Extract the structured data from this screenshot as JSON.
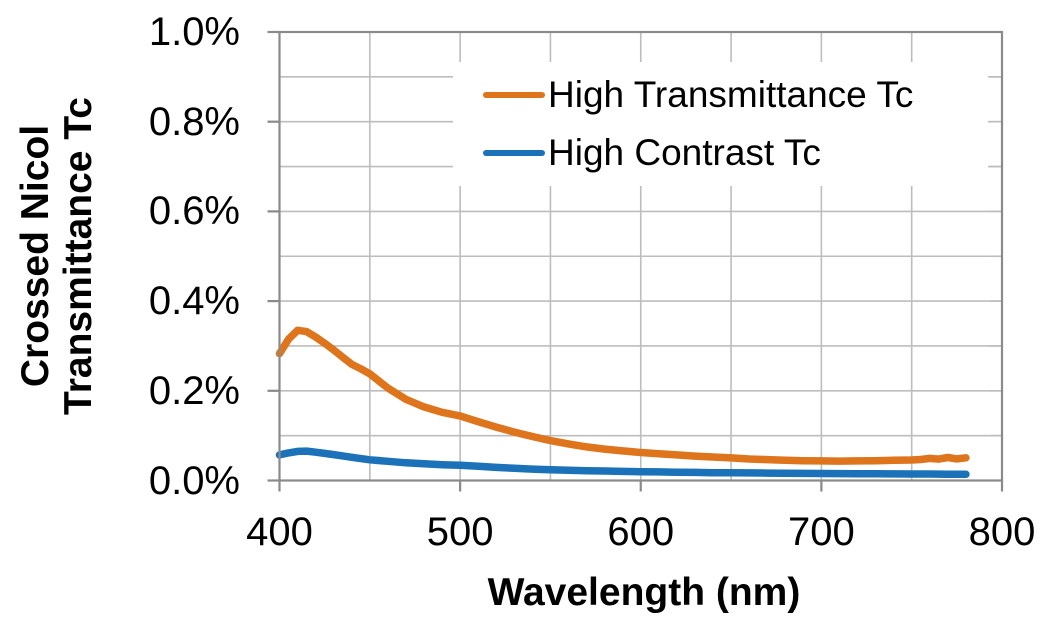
{
  "figure": {
    "background": "#ffffff"
  },
  "chart_data": {
    "type": "line",
    "title": "",
    "x_axis": {
      "title": "Wavelength (nm)",
      "min": 400,
      "max": 800,
      "minor_grid_step": 50,
      "ticks": [
        {
          "value": 400,
          "label": "400"
        },
        {
          "value": 500,
          "label": "500"
        },
        {
          "value": 600,
          "label": "600"
        },
        {
          "value": 700,
          "label": "700"
        },
        {
          "value": 800,
          "label": "800"
        }
      ]
    },
    "y_axis": {
      "title_line1": "Crossed Nicol",
      "title_line2": "Transmittance Tc",
      "unit": "%",
      "min": 0,
      "max": 1.0,
      "minor_grid_step": 0.1,
      "ticks": [
        {
          "value": 0.0,
          "label": "0.0%"
        },
        {
          "value": 0.2,
          "label": "0.2%"
        },
        {
          "value": 0.4,
          "label": "0.4%"
        },
        {
          "value": 0.6,
          "label": "0.6%"
        },
        {
          "value": 0.8,
          "label": "0.8%"
        },
        {
          "value": 1.0,
          "label": "1.0%"
        }
      ]
    },
    "grid": {
      "grid_color": "#BDBDBD",
      "border_color": "#8A8A8A",
      "tick_color": "#8A8A8A",
      "grid_on": true
    },
    "legend": {
      "position": "inside-top-right",
      "background": "#ffffff"
    },
    "x": [
      400,
      405,
      410,
      415,
      420,
      425,
      430,
      435,
      440,
      445,
      450,
      460,
      470,
      480,
      490,
      500,
      510,
      520,
      530,
      540,
      550,
      560,
      570,
      580,
      590,
      600,
      610,
      620,
      630,
      640,
      650,
      660,
      670,
      680,
      690,
      700,
      710,
      720,
      730,
      740,
      750,
      755,
      760,
      765,
      770,
      775,
      780
    ],
    "series": [
      {
        "name": "High Transmittance Tc",
        "color": "#DE741C",
        "values": [
          0.283,
          0.315,
          0.335,
          0.332,
          0.32,
          0.306,
          0.291,
          0.275,
          0.259,
          0.249,
          0.238,
          0.206,
          0.181,
          0.164,
          0.152,
          0.144,
          0.131,
          0.119,
          0.108,
          0.098,
          0.089,
          0.0815,
          0.075,
          0.07,
          0.066,
          0.0625,
          0.0595,
          0.057,
          0.0545,
          0.0525,
          0.0505,
          0.048,
          0.0465,
          0.0452,
          0.0442,
          0.0437,
          0.0432,
          0.0436,
          0.0442,
          0.045,
          0.0458,
          0.0468,
          0.0492,
          0.0478,
          0.0512,
          0.0482,
          0.0506
        ]
      },
      {
        "name": "High Contrast Tc",
        "color": "#1B72B8",
        "values": [
          0.057,
          0.0615,
          0.0648,
          0.0655,
          0.0632,
          0.0605,
          0.0578,
          0.0548,
          0.0518,
          0.0488,
          0.0462,
          0.0427,
          0.0394,
          0.0372,
          0.0352,
          0.0338,
          0.0316,
          0.0293,
          0.0272,
          0.0254,
          0.024,
          0.0227,
          0.0217,
          0.0212,
          0.0203,
          0.0196,
          0.0191,
          0.0184,
          0.0181,
          0.0175,
          0.0172,
          0.0169,
          0.0164,
          0.0162,
          0.0158,
          0.0156,
          0.0153,
          0.0152,
          0.0149,
          0.0147,
          0.0146,
          0.0145,
          0.0144,
          0.0142,
          0.0141,
          0.014,
          0.0138
        ]
      }
    ]
  }
}
